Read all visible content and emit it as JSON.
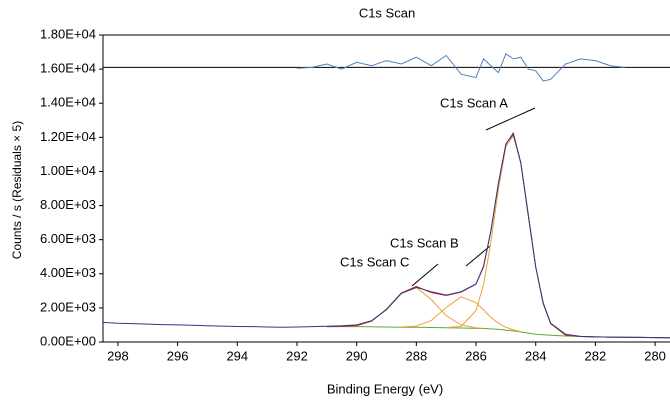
{
  "chart_data": {
    "type": "line",
    "title": "C1s Scan",
    "x_label": "Binding Energy (eV)",
    "y_label": "Counts / s  (Residuals × 5)",
    "annotations": [
      "C1s Scan A",
      "C1s Scan B",
      "C1s Scan C"
    ],
    "x": [
      298.5,
      298,
      297.5,
      297,
      296.5,
      296,
      295.5,
      295,
      294.5,
      294,
      293.5,
      293,
      292.5,
      292,
      291.5,
      291,
      290.5,
      290,
      289.5,
      289,
      288.5,
      288,
      287.5,
      287,
      286.5,
      286,
      285.75,
      285.5,
      285.25,
      285,
      284.75,
      284.5,
      284.25,
      284,
      283.75,
      283.5,
      283,
      282.5,
      282,
      281.5,
      281,
      280.5,
      280,
      279.5
    ],
    "series": [
      {
        "color": "#4f81bd",
        "values": [
          null,
          null,
          null,
          null,
          null,
          null,
          null,
          null,
          null,
          null,
          null,
          null,
          null,
          16050,
          16100,
          16300,
          16000,
          16400,
          16200,
          16500,
          16300,
          16700,
          16200,
          16800,
          15700,
          15500,
          16600,
          16200,
          15800,
          16900,
          16600,
          16700,
          16000,
          15900,
          15300,
          15400,
          16300,
          16600,
          16500,
          16200,
          16100,
          null,
          null,
          null
        ]
      },
      {
        "color": "#5aaa32",
        "values": [
          null,
          null,
          null,
          null,
          null,
          null,
          null,
          null,
          null,
          null,
          null,
          null,
          null,
          null,
          null,
          900,
          900,
          900,
          890,
          880,
          870,
          860,
          850,
          840,
          820,
          800,
          790,
          770,
          740,
          700,
          650,
          590,
          520,
          460,
          420,
          390,
          350,
          320,
          300,
          290,
          280,
          270,
          260,
          250
        ]
      },
      {
        "color": "#f0a030",
        "values": [
          null,
          null,
          null,
          null,
          null,
          null,
          null,
          null,
          null,
          null,
          null,
          null,
          null,
          null,
          null,
          null,
          null,
          null,
          null,
          null,
          null,
          null,
          null,
          844,
          913,
          1843,
          3345,
          5850,
          8946,
          11458,
          12104,
          10490,
          7468,
          4417,
          2249,
          1076,
          402,
          320,
          null,
          null,
          null,
          null,
          null,
          null
        ]
      },
      {
        "color": "#f0a030",
        "values": [
          null,
          null,
          null,
          null,
          null,
          null,
          null,
          null,
          null,
          null,
          null,
          null,
          null,
          null,
          null,
          null,
          null,
          null,
          null,
          null,
          877,
          935,
          1258,
          2020,
          2648,
          2315,
          1881,
          1442,
          1095,
          859,
          712,
          610,
          null,
          null,
          null,
          null,
          null,
          null,
          null,
          null,
          null,
          null,
          null,
          null
        ]
      },
      {
        "color": "#f0a030",
        "values": [
          null,
          null,
          null,
          null,
          null,
          null,
          null,
          null,
          null,
          null,
          null,
          null,
          null,
          null,
          null,
          null,
          907,
          963,
          1221,
          1925,
          2873,
          3187,
          2490,
          1540,
          1001,
          828,
          799,
          null,
          null,
          null,
          null,
          null,
          null,
          null,
          null,
          null,
          null,
          null,
          null,
          null,
          null,
          null,
          null,
          null
        ]
      },
      {
        "color": "#d62728",
        "values": [
          null,
          null,
          null,
          null,
          null,
          null,
          null,
          null,
          null,
          null,
          null,
          null,
          null,
          null,
          null,
          900,
          907,
          963,
          1221,
          1925,
          2880,
          3262,
          2898,
          2724,
          2922,
          3386,
          4445,
          6522,
          9301,
          11617,
          12166,
          10510,
          7468,
          4417,
          2249,
          1076,
          402,
          320,
          300,
          290,
          280,
          270,
          260,
          250
        ]
      },
      {
        "color": "#2e3a87",
        "values": [
          1150,
          1100,
          1080,
          1050,
          1020,
          1000,
          980,
          950,
          930,
          910,
          900,
          880,
          870,
          880,
          900,
          920,
          950,
          1000,
          1250,
          1900,
          2850,
          3200,
          2950,
          2750,
          2950,
          3400,
          4400,
          6500,
          9300,
          11600,
          12250,
          10500,
          7400,
          4400,
          2300,
          1100,
          450,
          330,
          300,
          290,
          280,
          270,
          260,
          250
        ]
      }
    ],
    "hline": 16100,
    "xlim": [
      298.5,
      279.5
    ],
    "xticks": [
      298,
      296,
      294,
      292,
      290,
      288,
      286,
      284,
      282,
      280
    ],
    "ylim": [
      0,
      18000
    ],
    "yticks": [
      {
        "value": 0,
        "label": "0.00E+00"
      },
      {
        "value": 2000,
        "label": "2.00E+03"
      },
      {
        "value": 4000,
        "label": "4.00E+03"
      },
      {
        "value": 6000,
        "label": "6.00E+03"
      },
      {
        "value": 8000,
        "label": "8.00E+03"
      },
      {
        "value": 10000,
        "label": "1.00E+04"
      },
      {
        "value": 12000,
        "label": "1.20E+04"
      },
      {
        "value": 14000,
        "label": "1.40E+04"
      },
      {
        "value": 16000,
        "label": "1.60E+04"
      },
      {
        "value": 18000,
        "label": "1.80E+04"
      }
    ],
    "grid": false
  }
}
